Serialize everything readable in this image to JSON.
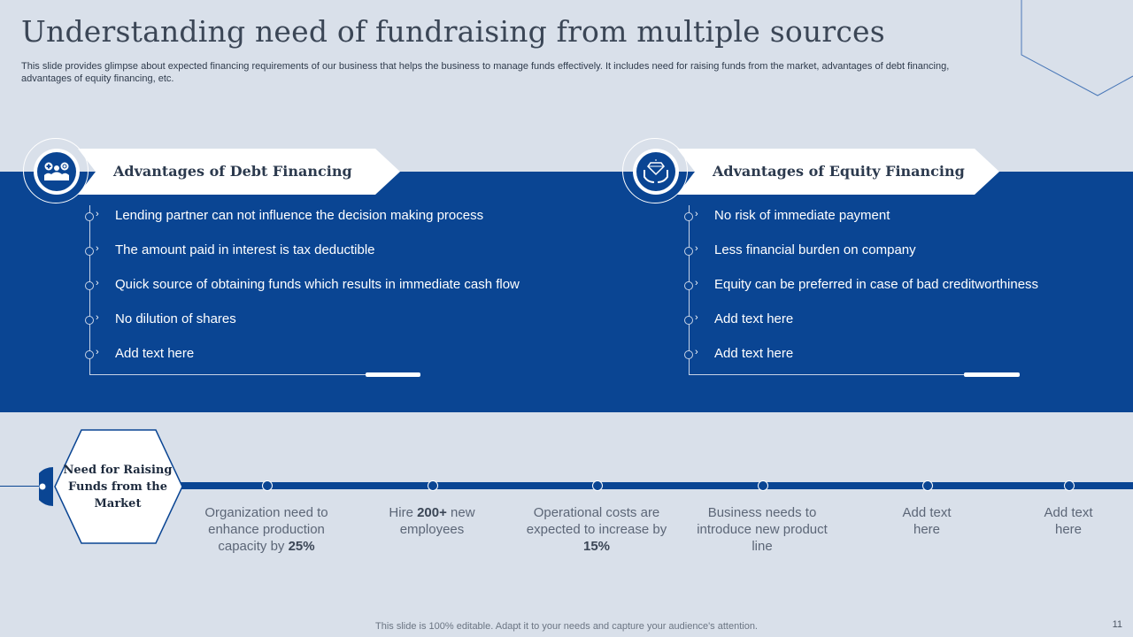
{
  "header": {
    "title": "Understanding need of fundraising from multiple sources",
    "subtitle": "This slide provides glimpse about expected financing requirements of our business that helps the business to manage funds effectively. It includes need for raising funds from the market, advantages of debt financing, advantages of equity financing, etc."
  },
  "debt": {
    "heading": "Advantages of Debt Financing",
    "icon": "business-people-icon",
    "items": [
      "Lending partner can not influence the decision making process",
      "The amount paid in interest is tax deductible",
      "Quick source of obtaining funds which results in immediate cash flow",
      "No dilution of shares",
      "Add text here"
    ]
  },
  "equity": {
    "heading": "Advantages of Equity Financing",
    "icon": "diamond-hands-icon",
    "items": [
      "No risk of immediate payment",
      "Less financial burden on company",
      "Equity can be preferred in case of bad creditworthiness",
      "Add text here",
      "Add text here"
    ]
  },
  "timeline": {
    "hex_label": "Need for Raising Funds from the Market",
    "points": [
      {
        "pre": "Organization need to enhance production capacity by ",
        "bold": "25%",
        "post": ""
      },
      {
        "pre": "Hire ",
        "bold": "200+",
        "post": " new employees"
      },
      {
        "pre": "Operational costs are expected to increase by ",
        "bold": "15%",
        "post": ""
      },
      {
        "pre": "Business needs to introduce new product line",
        "bold": "",
        "post": ""
      },
      {
        "pre": "Add text here",
        "bold": "",
        "post": ""
      },
      {
        "pre": "Add text here",
        "bold": "",
        "post": ""
      }
    ]
  },
  "footer": {
    "note": "This slide is 100% editable. Adapt it to your needs and capture your audience's attention.",
    "page": "11"
  },
  "colors": {
    "accent": "#0a4593",
    "background": "#d9e0ea"
  }
}
